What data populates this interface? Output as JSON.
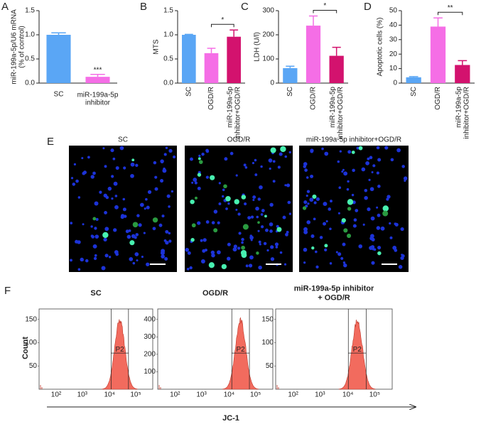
{
  "chart_data": [
    {
      "type": "bar",
      "panel": "A",
      "ylabel": "miR-199a-5p/U6 mRNA (% of control)",
      "categories": [
        "SC",
        "miR-199a-5p inhibitor"
      ],
      "values": [
        1.0,
        0.13
      ],
      "errors": [
        0.04,
        0.05
      ],
      "colors": [
        "#5aa6f5",
        "#f56ee6"
      ],
      "ylim": [
        0,
        1.5
      ],
      "yticks": [
        {
          "value": 0,
          "label": "0.0"
        },
        {
          "value": 0.5,
          "label": "0.5"
        },
        {
          "value": 1,
          "label": "1.0"
        },
        {
          "value": 1.5,
          "label": "1.5"
        }
      ],
      "annotation": "***"
    },
    {
      "type": "bar",
      "panel": "B",
      "ylabel": "MTS",
      "categories": [
        "SC",
        "OGD/R",
        "miR-199a-5p inhibitor+OGD/R"
      ],
      "values": [
        1.0,
        0.62,
        0.96
      ],
      "errors": [
        0.01,
        0.1,
        0.14
      ],
      "colors": [
        "#5aa6f5",
        "#f56ee6",
        "#d3126e"
      ],
      "ylim": [
        0,
        1.5
      ],
      "yticks": [
        {
          "value": 0,
          "label": "0.0"
        },
        {
          "value": 0.5,
          "label": "0.5"
        },
        {
          "value": 1,
          "label": "1.0"
        },
        {
          "value": 1.5,
          "label": "1.5"
        }
      ],
      "annotation": "*"
    },
    {
      "type": "bar",
      "panel": "C",
      "ylabel": "LDH (U/l)",
      "categories": [
        "SC",
        "OGD/R",
        "miR-199a-5p inhibitor+OGD/R"
      ],
      "values": [
        62,
        238,
        113
      ],
      "errors": [
        8,
        40,
        35
      ],
      "colors": [
        "#5aa6f5",
        "#f56ee6",
        "#d3126e"
      ],
      "ylim": [
        0,
        300
      ],
      "yticks": [
        0,
        100,
        200,
        300
      ],
      "annotation": "*"
    },
    {
      "type": "bar",
      "panel": "D",
      "ylabel": "Apoptotic cells (%)",
      "categories": [
        "SC",
        "OGD/R",
        "miR-199a-5p inhibitor+OGD/R"
      ],
      "values": [
        4,
        39,
        12.5
      ],
      "errors": [
        0.5,
        6,
        3
      ],
      "colors": [
        "#5aa6f5",
        "#f56ee6",
        "#d3126e"
      ],
      "ylim": [
        0,
        50
      ],
      "yticks": [
        0,
        10,
        20,
        30,
        40,
        50
      ],
      "annotation": "**"
    }
  ],
  "panel_e": {
    "panel": "E",
    "titles": [
      "SC",
      "OGD/R",
      "miR-199a-5p inhibitor+OGD/R"
    ]
  },
  "panel_f": {
    "panel": "F",
    "titles": [
      "SC",
      "OGD/R",
      "miR-199a-5p inhibitor + OGD/R"
    ],
    "ylabel": "Count",
    "xlabel": "JC-1",
    "gate": "P2",
    "xticks": [
      "10²",
      "10³",
      "10⁴",
      "10⁵"
    ],
    "yticks": [
      [
        50,
        100,
        150
      ],
      [
        100,
        200,
        300,
        400
      ],
      [
        50,
        100,
        150
      ]
    ]
  }
}
